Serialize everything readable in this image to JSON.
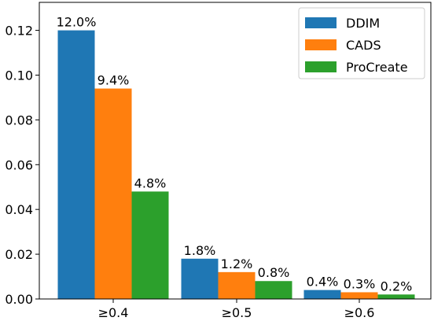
{
  "chart_data": {
    "type": "bar",
    "categories": [
      "≥0.4",
      "≥0.5",
      "≥0.6"
    ],
    "series": [
      {
        "name": "DDIM",
        "values": [
          0.12,
          0.018,
          0.004
        ],
        "labels": [
          "12.0%",
          "1.8%",
          "0.4%"
        ],
        "color": "#1f77b4"
      },
      {
        "name": "CADS",
        "values": [
          0.094,
          0.012,
          0.003
        ],
        "labels": [
          "9.4%",
          "1.2%",
          "0.3%"
        ],
        "color": "#ff7f0e"
      },
      {
        "name": "ProCreate",
        "values": [
          0.048,
          0.008,
          0.002
        ],
        "labels": [
          "4.8%",
          "0.8%",
          "0.2%"
        ],
        "color": "#2ca02c"
      }
    ],
    "yticks": [
      0.0,
      0.02,
      0.04,
      0.06,
      0.08,
      0.1,
      0.12
    ],
    "ytick_labels": [
      "0.00",
      "0.02",
      "0.04",
      "0.06",
      "0.08",
      "0.10",
      "0.12"
    ],
    "ylim": [
      0,
      0.1325
    ],
    "title": "",
    "xlabel": "",
    "ylabel": "",
    "grid": false,
    "legend": "top-right"
  }
}
